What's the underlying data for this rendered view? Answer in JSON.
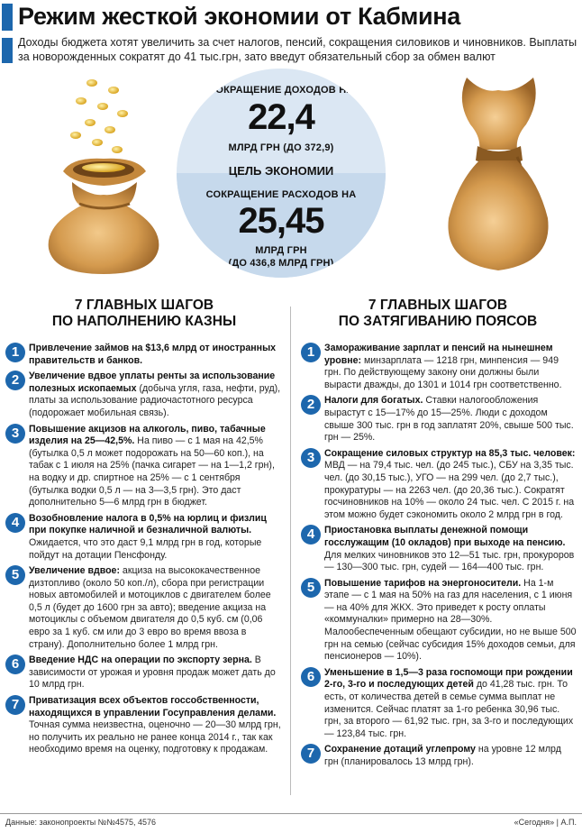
{
  "header": {
    "title": "Режим жесткой экономии от Кабмина",
    "subtitle": "Доходы бюджета хотят увеличить за счет налогов, пенсий, сокращения силовиков и чиновников. Выплаты за новорожденных сократят до 41 тыс.грн, зато введут обязательный сбор за обмен валют"
  },
  "circle": {
    "top_label": "СОКРАЩЕНИЕ ДОХОДОВ НА",
    "top_value": "22,4",
    "top_unit": "МЛРД ГРН (ДО 372,9)",
    "goal_label": "ЦЕЛЬ ЭКОНОМИИ",
    "bottom_label": "СОКРАЩЕНИЕ РАСХОДОВ НА",
    "bottom_value": "25,45",
    "bottom_unit1": "МЛРД ГРН",
    "bottom_unit2": "(ДО 436,8 МЛРД ГРН)"
  },
  "left": {
    "heading1": "7 ГЛАВНЫХ ШАГОВ",
    "heading2": "ПО НАПОЛНЕНИЮ КАЗНЫ",
    "items": [
      {
        "num": "1",
        "head": "Привлечение займов на $13,6 млрд от иностранных правительств и банков.",
        "text": ""
      },
      {
        "num": "2",
        "head": "Увеличение вдвое уплаты ренты за использование полезных ископаемых",
        "text": " (добыча угля, газа, нефти, руд), платы за использование радиочастотного ресурса (подорожает мобильная связь)."
      },
      {
        "num": "3",
        "head": "Повышение акцизов на алкоголь, пиво, табачные изделия на 25—42,5%.",
        "text": " На пиво — с 1 мая на 42,5% (бутылка 0,5 л может подорожать на 50—60 коп.), на табак с 1 июля на 25% (пачка сигарет — на 1—1,2 грн), на водку и др. спиртное на 25% — с 1 сентября (бутылка водки 0,5 л — на 3—3,5 грн). Это даст дополнительно 5—6 млрд грн в бюджет."
      },
      {
        "num": "4",
        "head": "Возобновление налога в 0,5% на юрлиц и физлиц при покупке наличной и безналичной валюты.",
        "text": " Ожидается, что это даст 9,1 млрд грн в год, которые пойдут на дотации Пенсфонду."
      },
      {
        "num": "5",
        "head": "Увеличение вдвое:",
        "text": " акциза на высококачественное дизтопливо (около 50 коп./л), сбора при регистрации новых автомобилей и мотоциклов с двигателем более 0,5 л (будет до 1600 грн за авто); введение акциза на мотоциклы с объемом двигателя до 0,5 куб. см (0,06 евро за 1 куб. см или до 3 евро во время ввоза в страну). Дополнительно более 1 млрд грн."
      },
      {
        "num": "6",
        "head": "Введение НДС на операции по экспорту зерна.",
        "text": " В зависимости от урожая и уровня продаж может дать до 10 млрд грн."
      },
      {
        "num": "7",
        "head": "Приватизация всех объектов госсобственности, находящихся в управлении Госуправления делами.",
        "text": " Точная сумма неизвестна, оценочно — 20—30 млрд грн, но получить их реально не ранее конца 2014 г., так как необходимо время на оценку, подготовку к продажам."
      }
    ]
  },
  "right": {
    "heading1": "7 ГЛАВНЫХ ШАГОВ",
    "heading2": "ПО ЗАТЯГИВАНИЮ ПОЯСОВ",
    "items": [
      {
        "num": "1",
        "head": "Замораживание зарплат и пенсий на нынешнем уровне:",
        "text": " минзарплата — 1218 грн, минпенсия — 949 грн. По действующему закону они должны были вырасти дважды, до 1301 и 1014 грн соответственно."
      },
      {
        "num": "2",
        "head": "Налоги для богатых.",
        "text": " Ставки налогообложения вырастут с 15—17% до 15—25%. Люди с доходом свыше 300 тыс. грн в год заплатят 20%, свыше 500 тыс. грн — 25%."
      },
      {
        "num": "3",
        "head": "Сокращение силовых структур на 85,3 тыс. человек:",
        "text": " МВД — на 79,4 тыс. чел. (до 245 тыс.), СБУ на 3,35 тыс. чел. (до 30,15 тыс.), УГО — на 299 чел. (до 2,7 тыс.), прокуратуры — на 2263 чел. (до 20,36 тыс.). Сократят госчиновников на 10% — около 24 тыс. чел. С 2015 г. на этом можно будет сэкономить около 2 млрд грн в год."
      },
      {
        "num": "4",
        "head": "Приостановка выплаты денежной помощи госслужащим (10 окладов) при выходе на пенсию.",
        "text": " Для мелких чиновников это 12—51 тыс. грн, прокуроров — 130—300 тыс. грн, судей — 164—400 тыс. грн."
      },
      {
        "num": "5",
        "head": "Повышение тарифов на энергоносители.",
        "text": " На 1-м этапе — с 1 мая на 50% на газ для населения, с 1 июня — на 40% для ЖКХ. Это приведет к росту оплаты «коммуналки» примерно на 28—30%. Малообеспеченным обещают субсидии, но не выше 500 грн на семью (сейчас субсидия 15% доходов семьи, для пенсионеров — 10%)."
      },
      {
        "num": "6",
        "head": "Уменьшение в 1,5—3 раза госпомощи при рождении 2-го, 3-го и последующих детей",
        "text": " до 41,28 тыс. грн. То есть, от количества детей в семье сумма выплат не изменится. Сейчас платят за 1-го ребенка 30,96 тыс. грн, за второго — 61,92 тыс. грн, за 3-го и последующих — 123,84 тыс. грн."
      },
      {
        "num": "7",
        "head": "Сохранение дотаций углепрому",
        "text": " на уровне 12 млрд грн (планировалось 13 млрд грн)."
      }
    ]
  },
  "footer": {
    "source": "Данные: законопроекты №№4575, 4576",
    "credit": "«Сегодня» | А.П."
  },
  "colors": {
    "accent": "#1d67ad",
    "circle_top": "#dbe7f3",
    "circle_bottom": "#c6d9ec",
    "bag": "#d49a4e"
  }
}
